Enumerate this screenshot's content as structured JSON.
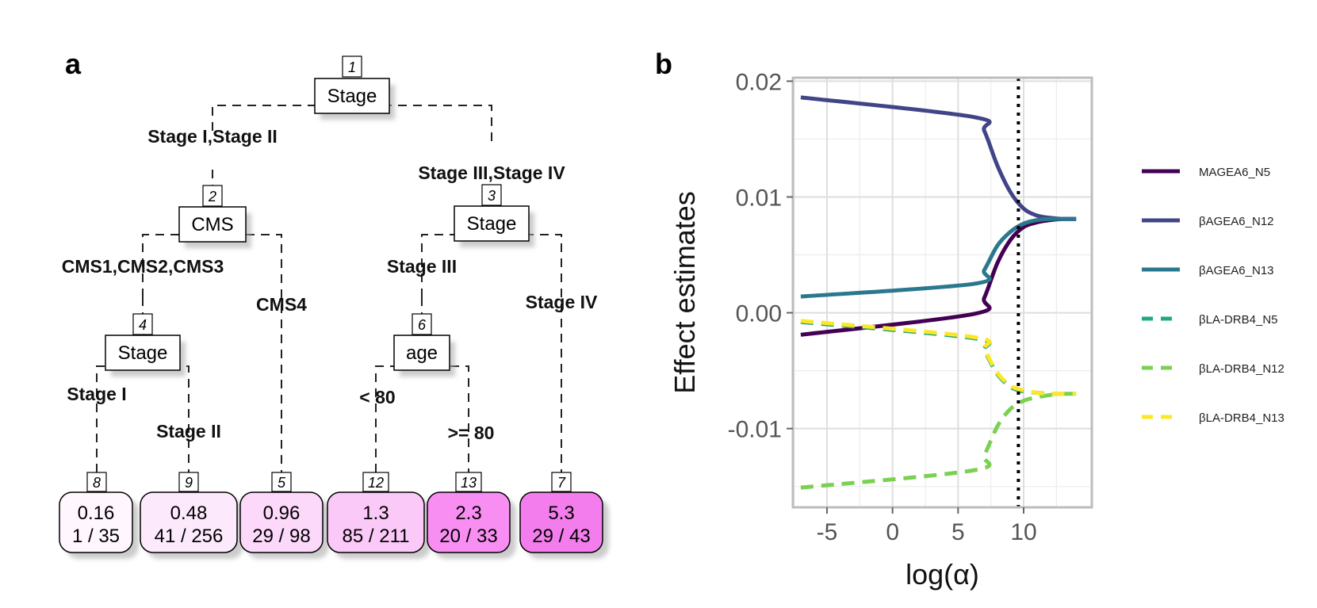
{
  "panels": {
    "a": {
      "label": "a",
      "tree": {
        "nodes": [
          {
            "id": "1",
            "var": "Stage"
          },
          {
            "id": "2",
            "var": "CMS"
          },
          {
            "id": "3",
            "var": "Stage"
          },
          {
            "id": "4",
            "var": "Stage"
          },
          {
            "id": "6",
            "var": "age"
          }
        ],
        "edges": [
          {
            "label": "Stage I,Stage II"
          },
          {
            "label": "Stage III,Stage IV"
          },
          {
            "label": "CMS1,CMS2,CMS3"
          },
          {
            "label": "CMS4"
          },
          {
            "label": "Stage III"
          },
          {
            "label": "Stage IV"
          },
          {
            "label": "Stage I"
          },
          {
            "label": "Stage II"
          },
          {
            "label": "< 80"
          },
          {
            "label": ">= 80"
          }
        ],
        "leaves": [
          {
            "id": "8",
            "value": "0.16",
            "count": "1 / 35",
            "fill": "#fff6fe"
          },
          {
            "id": "9",
            "value": "0.48",
            "count": "41 / 256",
            "fill": "#fde9fc"
          },
          {
            "id": "5",
            "value": "0.96",
            "count": "29 / 98",
            "fill": "#fcd8fa"
          },
          {
            "id": "12",
            "value": "1.3",
            "count": "85 / 211",
            "fill": "#fbc9f8"
          },
          {
            "id": "13",
            "value": "2.3",
            "count": "20 / 33",
            "fill": "#f88ef1"
          },
          {
            "id": "7",
            "value": "5.3",
            "count": "29 / 43",
            "fill": "#f47ded"
          }
        ]
      }
    },
    "b": {
      "label": "b"
    }
  },
  "chart_data": {
    "type": "line",
    "title": "",
    "xlabel": "log(α)",
    "ylabel": "Effect estimates",
    "xlim": [
      -7.6,
      15.2
    ],
    "ylim": [
      -0.0168,
      0.0203
    ],
    "x_ticks": [
      -5,
      0,
      5,
      10
    ],
    "x_tick_labels": [
      "-5",
      "0",
      "5",
      "10"
    ],
    "y_ticks": [
      -0.01,
      0.0,
      0.01,
      0.02
    ],
    "y_tick_labels": [
      "-0.01",
      "0.00",
      "0.01",
      "0.02"
    ],
    "vline": 9.6,
    "grid": true,
    "legend_position": "right",
    "series": [
      {
        "name": "MAGEA6_N5",
        "color": "#440154",
        "dash": false,
        "x": [
          -7,
          6.2,
          7,
          8,
          9,
          10,
          11,
          12,
          13,
          14
        ],
        "y": [
          -0.0019,
          -0.0001,
          0.0013,
          0.0043,
          0.0063,
          0.0074,
          0.0078,
          0.008,
          0.0081,
          0.0081
        ]
      },
      {
        "name": "βAGEA6_N12",
        "color": "#414487",
        "dash": false,
        "x": [
          -7,
          6.2,
          7,
          8,
          9,
          10,
          11,
          12,
          13,
          14
        ],
        "y": [
          0.0186,
          0.0169,
          0.0157,
          0.0127,
          0.0104,
          0.009,
          0.0084,
          0.0082,
          0.0081,
          0.0081
        ]
      },
      {
        "name": "βAGEA6_N13",
        "color": "#2a788e",
        "dash": false,
        "x": [
          -7,
          6.2,
          7,
          8,
          9,
          10,
          11,
          12,
          13,
          14
        ],
        "y": [
          0.0014,
          0.0025,
          0.0037,
          0.0058,
          0.007,
          0.0077,
          0.008,
          0.0081,
          0.0081,
          0.0081
        ]
      },
      {
        "name": "βLA-DRB4_N5",
        "color": "#22a884",
        "dash": true,
        "x": [
          -7,
          6.2,
          7,
          8,
          9,
          10,
          11,
          12,
          13,
          14
        ],
        "y": [
          -0.0008,
          -0.0022,
          -0.0033,
          -0.0053,
          -0.0064,
          -0.0068,
          -0.0069,
          -0.007,
          -0.007,
          -0.007
        ]
      },
      {
        "name": "βLA-DRB4_N12",
        "color": "#7ad151",
        "dash": true,
        "x": [
          -7,
          6.2,
          7,
          8,
          9,
          10,
          11,
          12,
          13,
          14
        ],
        "y": [
          -0.0151,
          -0.0136,
          -0.0123,
          -0.0098,
          -0.0083,
          -0.0076,
          -0.0073,
          -0.0071,
          -0.007,
          -0.007
        ]
      },
      {
        "name": "βLA-DRB4_N13",
        "color": "#fde725",
        "dash": true,
        "x": [
          -7,
          6.2,
          7,
          8,
          9,
          10,
          11,
          12,
          13,
          14
        ],
        "y": [
          -0.0007,
          -0.0021,
          -0.0032,
          -0.0052,
          -0.0063,
          -0.0067,
          -0.0069,
          -0.007,
          -0.007,
          -0.007
        ]
      }
    ]
  }
}
